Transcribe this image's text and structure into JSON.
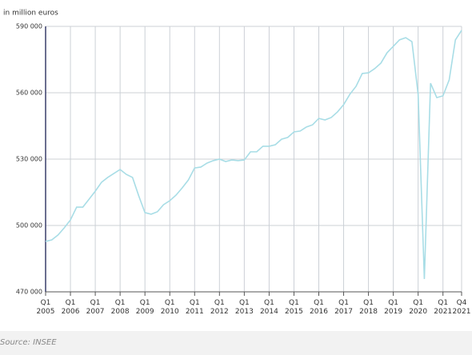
{
  "chart_data": {
    "type": "line",
    "y_label": "in million euros",
    "source": "Source: INSEE",
    "categories": [
      "Q1 2005",
      null,
      null,
      null,
      "Q1 2006",
      null,
      null,
      null,
      "Q1 2007",
      null,
      null,
      null,
      "Q1 2008",
      null,
      null,
      null,
      "Q1 2009",
      null,
      null,
      null,
      "Q1 2010",
      null,
      null,
      null,
      "Q1 2011",
      null,
      null,
      null,
      "Q1 2012",
      null,
      null,
      null,
      "Q1 2013",
      null,
      null,
      null,
      "Q1 2014",
      null,
      null,
      null,
      "Q1 2015",
      null,
      null,
      null,
      "Q1 2016",
      null,
      null,
      null,
      "Q1 2017",
      null,
      null,
      null,
      "Q1 2018",
      null,
      null,
      null,
      "Q1 2019",
      null,
      null,
      null,
      "Q1 2020",
      null,
      null,
      null,
      "Q1 2021",
      null,
      null,
      "Q4 2021"
    ],
    "series": [
      {
        "color": "#a8dde6",
        "values": [
          492800,
          493500,
          495700,
          498900,
          502500,
          508300,
          508300,
          511900,
          515500,
          519500,
          521700,
          523500,
          525300,
          523100,
          521700,
          513400,
          505800,
          505100,
          506200,
          509400,
          511200,
          513700,
          517000,
          520600,
          526000,
          526400,
          528200,
          529300,
          530000,
          528900,
          529600,
          529300,
          529600,
          533300,
          533300,
          535800,
          535800,
          536500,
          539000,
          539800,
          542300,
          542700,
          544500,
          545500,
          548400,
          547700,
          548800,
          551300,
          554600,
          559300,
          562900,
          568700,
          569000,
          570900,
          573400,
          578100,
          581000,
          583900,
          584900,
          583100,
          559300,
          475800,
          564300,
          557800,
          558600,
          565800,
          583900,
          588200
        ]
      }
    ],
    "ylim": [
      470000,
      590000
    ],
    "yticks": [
      {
        "value": 470000,
        "label": "470 000"
      },
      {
        "value": 500000,
        "label": "500 000"
      },
      {
        "value": 530000,
        "label": "530 000"
      },
      {
        "value": 560000,
        "label": "560 000"
      },
      {
        "value": 590000,
        "label": "590 000"
      }
    ],
    "grid": true
  }
}
